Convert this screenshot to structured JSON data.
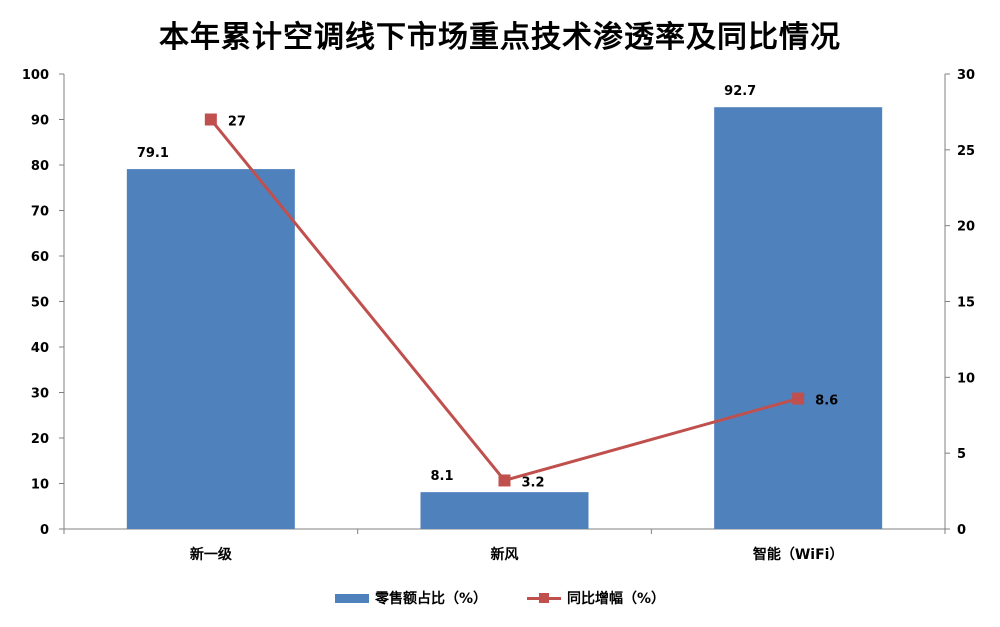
{
  "title": "本年累计空调线下市场重点技术渗透率及同比情况",
  "colors": {
    "bar": "#4F81BD",
    "line": "#C0504D",
    "axis": "#808080"
  },
  "chart_data": {
    "type": "bar",
    "categories": [
      "新一级",
      "新风",
      "智能（WiFi）"
    ],
    "series": [
      {
        "name": "零售额占比（%）",
        "type": "bar",
        "axis": "left",
        "values": [
          79.1,
          8.1,
          92.7
        ]
      },
      {
        "name": "同比增幅（%）",
        "type": "line",
        "axis": "right",
        "values": [
          27,
          3.2,
          8.6
        ]
      }
    ],
    "ylim": [
      0,
      100
    ],
    "yticks": [
      0,
      10,
      20,
      30,
      40,
      50,
      60,
      70,
      80,
      90,
      100
    ],
    "y2lim": [
      0,
      30
    ],
    "y2ticks": [
      0,
      5,
      10,
      15,
      20,
      25,
      30
    ],
    "legend": "bottom",
    "grid": false
  }
}
